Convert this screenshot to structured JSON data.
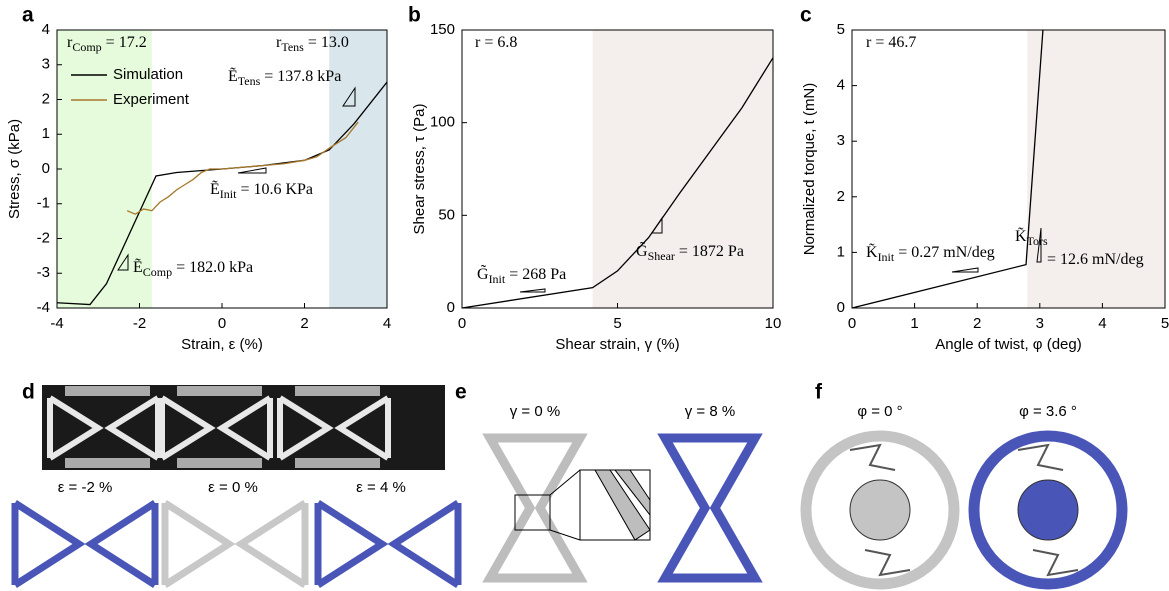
{
  "chart_data": [
    {
      "type": "line",
      "panel_label": "a",
      "xlabel": "Strain, ε (%)",
      "ylabel": "Stress, σ (kPa)",
      "xlim": [
        -4,
        4
      ],
      "ylim": [
        -4,
        4
      ],
      "xticks": [
        -4,
        -2,
        0,
        2,
        4
      ],
      "yticks": [
        -4,
        -3,
        -2,
        -1,
        0,
        1,
        2,
        3,
        4
      ],
      "regions": [
        {
          "xlim": [
            -4,
            -1.7
          ],
          "color": "#e5fbdb"
        },
        {
          "xlim": [
            2.6,
            4
          ],
          "color": "#d9e6ec"
        }
      ],
      "legend": "upper left",
      "series": [
        {
          "name": "Simulation",
          "color": "#000000",
          "x": [
            -4,
            -3.2,
            -2.8,
            -1.6,
            -1.1,
            0,
            1,
            2,
            2.6,
            3.2,
            4
          ],
          "values": [
            -3.85,
            -3.9,
            -3.3,
            -0.2,
            -0.1,
            0,
            0.1,
            0.25,
            0.55,
            1.3,
            2.5
          ]
        },
        {
          "name": "Experiment",
          "color": "#a6782a",
          "x": [
            -2.3,
            -2.1,
            -1.9,
            -1.7,
            -1.5,
            -1.3,
            -1.1,
            -0.9,
            -0.7,
            -0.5,
            -0.3,
            0,
            0.5,
            1,
            1.5,
            2,
            2.3,
            2.6,
            2.8,
            3.0,
            3.2,
            3.3
          ],
          "values": [
            -1.2,
            -1.3,
            -1.15,
            -1.2,
            -0.95,
            -0.8,
            -0.6,
            -0.45,
            -0.3,
            -0.1,
            0,
            0,
            0.05,
            0.1,
            0.15,
            0.25,
            0.35,
            0.6,
            0.75,
            0.9,
            1.2,
            1.35
          ]
        }
      ],
      "annotations": [
        [
          {
            "text": "r"
          },
          {
            "text": "Comp",
            "sub": true
          },
          {
            "text": " = 17.2"
          }
        ],
        [
          {
            "text": "r"
          },
          {
            "text": "Tens",
            "sub": true
          },
          {
            "text": " = 13.0"
          }
        ],
        [
          {
            "text": "Ẽ"
          },
          {
            "text": "Tens",
            "sub": true
          },
          {
            "text": " = 137.8 kPa"
          }
        ],
        [
          {
            "text": "Ẽ"
          },
          {
            "text": "Init",
            "sub": true
          },
          {
            "text": " = 10.6 KPa"
          }
        ],
        [
          {
            "text": "Ẽ"
          },
          {
            "text": "Comp",
            "sub": true
          },
          {
            "text": " = 182.0 kPa"
          }
        ]
      ]
    },
    {
      "type": "line",
      "panel_label": "b",
      "xlabel": "Shear strain, γ (%)",
      "ylabel": "Shear stress, τ (Pa)",
      "xlim": [
        0,
        10
      ],
      "ylim": [
        0,
        150
      ],
      "xticks": [
        0,
        5,
        10
      ],
      "yticks": [
        0,
        50,
        100,
        150
      ],
      "regions": [
        {
          "xlim": [
            4.2,
            10
          ],
          "color": "#f4eeed"
        }
      ],
      "color": "#000000",
      "x": [
        0,
        4.2,
        5,
        6,
        7,
        8,
        9,
        10
      ],
      "values": [
        0,
        11,
        20,
        38,
        62,
        85,
        108,
        135
      ],
      "annotations": [
        [
          {
            "text": "r = 6.8"
          }
        ],
        [
          {
            "text": "G̃"
          },
          {
            "text": "Init",
            "sub": true
          },
          {
            "text": " = 268 Pa"
          }
        ],
        [
          {
            "text": "G̃"
          },
          {
            "text": "Shear",
            "sub": true
          },
          {
            "text": " = 1872 Pa"
          }
        ]
      ]
    },
    {
      "type": "line",
      "panel_label": "c",
      "xlabel": "Angle of twist, φ (deg)",
      "ylabel": "Normalized torque, t (mN)",
      "xlim": [
        0,
        5
      ],
      "ylim": [
        0,
        5
      ],
      "xticks": [
        0,
        1,
        2,
        3,
        4,
        5
      ],
      "yticks": [
        0,
        1,
        2,
        3,
        4,
        5
      ],
      "regions": [
        {
          "xlim": [
            2.8,
            5
          ],
          "color": "#f4eeed"
        }
      ],
      "color": "#000000",
      "x": [
        0,
        2.78,
        3.05
      ],
      "values": [
        0,
        0.78,
        5
      ],
      "annotations": [
        [
          {
            "text": "r = 46.7"
          }
        ],
        [
          {
            "text": "K̃"
          },
          {
            "text": "Init",
            "sub": true
          },
          {
            "text": " = 0.27 mN/deg"
          }
        ],
        [
          {
            "text": "K̃"
          },
          {
            "text": "Tors",
            "sub": true
          }
        ],
        [
          {
            "text": "= 12.6 mN/deg"
          }
        ]
      ]
    }
  ],
  "panels": [
    {
      "label": "d",
      "captions": [
        "ε = -2 %",
        "ε = 0 %",
        "ε = 4 %"
      ]
    },
    {
      "label": "e",
      "captions": [
        "γ = 0 %",
        "γ = 8 %"
      ]
    },
    {
      "label": "f",
      "captions": [
        "φ = 0 °",
        "φ = 3.6 °"
      ]
    }
  ]
}
